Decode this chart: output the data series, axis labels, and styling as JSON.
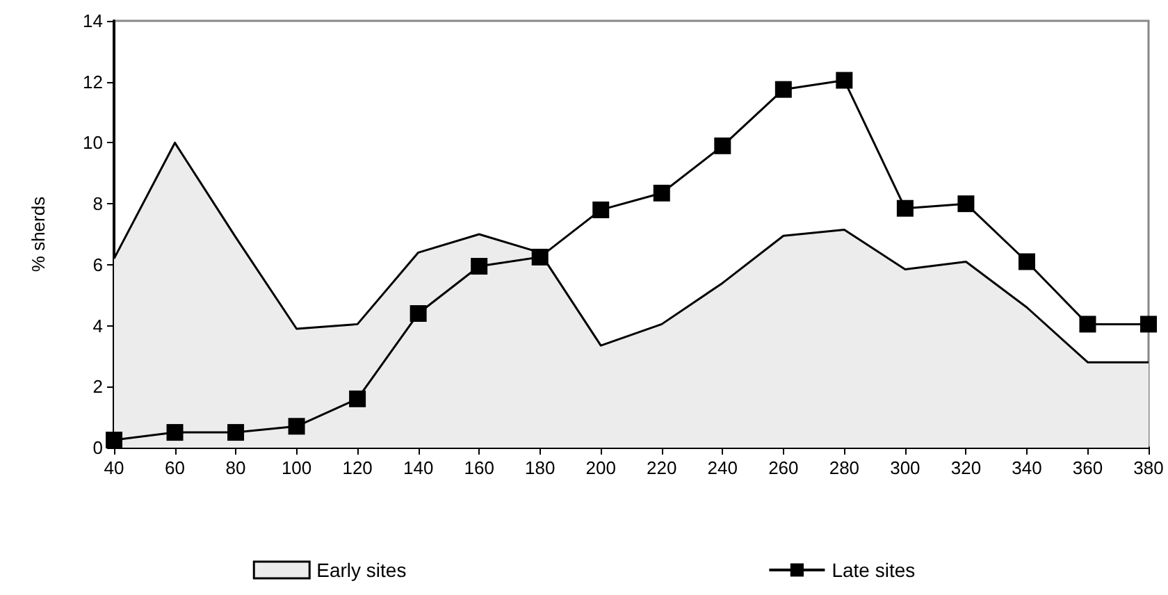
{
  "chart_data": {
    "type": "line",
    "ylabel": "% sherds",
    "x": [
      40,
      60,
      80,
      100,
      120,
      140,
      160,
      180,
      200,
      220,
      240,
      260,
      280,
      300,
      320,
      340,
      360,
      380
    ],
    "series": [
      {
        "name": "Early sites",
        "type": "area",
        "color": "#ececec",
        "marker": "none",
        "values": [
          6.2,
          10,
          6.9,
          3.9,
          4.05,
          6.4,
          7.0,
          6.4,
          3.35,
          4.05,
          5.4,
          6.95,
          7.15,
          5.85,
          6.1,
          4.6,
          2.8,
          2.8
        ]
      },
      {
        "name": "Late sites",
        "color": "#000000",
        "marker": "square",
        "values": [
          0.25,
          0.5,
          0.5,
          0.7,
          1.6,
          4.4,
          5.95,
          6.25,
          7.8,
          8.35,
          9.9,
          11.75,
          12.05,
          7.85,
          8.0,
          6.1,
          4.05,
          4.05
        ]
      }
    ],
    "xlim": [
      40,
      380
    ],
    "xticks": [
      40,
      60,
      80,
      100,
      120,
      140,
      160,
      180,
      200,
      220,
      240,
      260,
      280,
      300,
      320,
      340,
      360,
      380
    ],
    "ylim": [
      0,
      14
    ],
    "yticks": [
      0,
      2,
      4,
      6,
      8,
      10,
      12,
      14
    ],
    "grid": false,
    "legend": "bottom",
    "line_style": "solid"
  }
}
